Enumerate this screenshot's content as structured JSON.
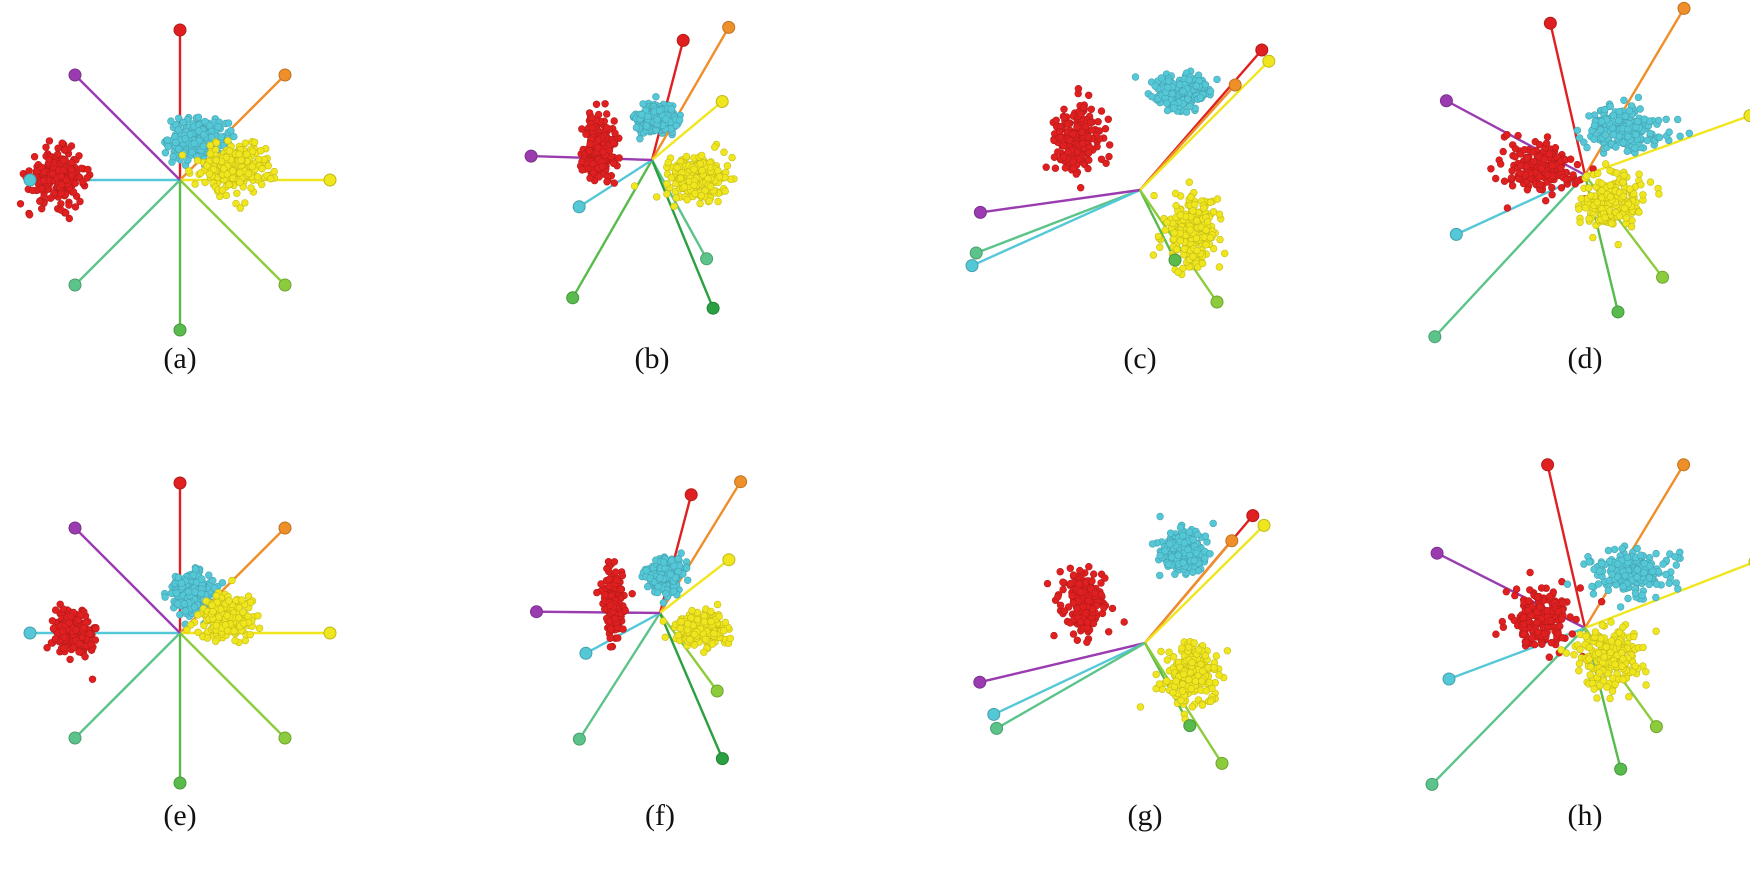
{
  "figure": {
    "colors": {
      "red": "#e02020",
      "cyan": "#55c8d8",
      "yellow": "#f0e61e",
      "purple": "#9a3cb0",
      "orange": "#ee8f2a",
      "teal_green": "#5cc48a",
      "green": "#58bb4c",
      "lime": "#8ccc3c",
      "dark_green": "#2aa040"
    }
  },
  "chart_data": [
    {
      "type": "scatter",
      "caption": "(a)",
      "clusters": [
        {
          "color": "red",
          "center": [
            -0.82,
            0.02
          ],
          "spread": [
            0.17,
            0.16
          ],
          "count": 240
        },
        {
          "color": "cyan",
          "center": [
            0.12,
            0.27
          ],
          "spread": [
            0.17,
            0.12
          ],
          "count": 260
        },
        {
          "color": "yellow",
          "center": [
            0.37,
            0.09
          ],
          "spread": [
            0.22,
            0.15
          ],
          "count": 260
        }
      ],
      "axes": [
        {
          "color": "red",
          "end": [
            0,
            1
          ]
        },
        {
          "color": "orange",
          "end": [
            0.7,
            0.7
          ]
        },
        {
          "color": "yellow",
          "end": [
            1,
            0
          ]
        },
        {
          "color": "lime",
          "end": [
            0.7,
            -0.7
          ]
        },
        {
          "color": "green",
          "end": [
            0,
            -1
          ]
        },
        {
          "color": "teal_green",
          "end": [
            -0.7,
            -0.7
          ]
        },
        {
          "color": "cyan",
          "end": [
            -1,
            0
          ]
        },
        {
          "color": "purple",
          "end": [
            -0.7,
            0.7
          ]
        }
      ]
    },
    {
      "type": "scatter",
      "caption": "(b)",
      "clusters": [
        {
          "color": "red",
          "center": [
            -0.4,
            0.08
          ],
          "spread": [
            0.11,
            0.24
          ],
          "count": 220
        },
        {
          "color": "cyan",
          "center": [
            0.03,
            0.31
          ],
          "spread": [
            0.14,
            0.1
          ],
          "count": 250
        },
        {
          "color": "yellow",
          "center": [
            0.35,
            -0.13
          ],
          "spread": [
            0.2,
            0.14
          ],
          "count": 250
        }
      ],
      "axes": [
        {
          "color": "red",
          "end": [
            0.24,
            0.92
          ]
        },
        {
          "color": "orange",
          "end": [
            0.59,
            1.02
          ]
        },
        {
          "color": "yellow",
          "end": [
            0.54,
            0.45
          ]
        },
        {
          "color": "teal_green",
          "end": [
            0.42,
            -0.76
          ]
        },
        {
          "color": "dark_green",
          "end": [
            0.47,
            -1.14
          ]
        },
        {
          "color": "green",
          "end": [
            -0.61,
            -1.06
          ]
        },
        {
          "color": "cyan",
          "end": [
            -0.56,
            -0.36
          ]
        },
        {
          "color": "purple",
          "end": [
            -0.93,
            0.03
          ]
        }
      ]
    },
    {
      "type": "scatter",
      "caption": "(c)",
      "clusters": [
        {
          "color": "red",
          "center": [
            -0.46,
            0.36
          ],
          "spread": [
            0.15,
            0.22
          ],
          "count": 210
        },
        {
          "color": "cyan",
          "center": [
            0.29,
            0.7
          ],
          "spread": [
            0.18,
            0.11
          ],
          "count": 240
        },
        {
          "color": "yellow",
          "center": [
            0.36,
            -0.29
          ],
          "spread": [
            0.19,
            0.23
          ],
          "count": 240
        }
      ],
      "axes": [
        {
          "color": "red",
          "end": [
            0.87,
            1.0
          ]
        },
        {
          "color": "orange",
          "end": [
            0.68,
            0.75
          ]
        },
        {
          "color": "yellow",
          "end": [
            0.92,
            0.92
          ]
        },
        {
          "color": "teal_green",
          "end": [
            -1.17,
            -0.45
          ]
        },
        {
          "color": "cyan",
          "end": [
            -1.2,
            -0.54
          ]
        },
        {
          "color": "purple",
          "end": [
            -1.14,
            -0.16
          ]
        },
        {
          "color": "green",
          "end": [
            0.25,
            -0.5
          ]
        },
        {
          "color": "lime",
          "end": [
            0.55,
            -0.8
          ]
        }
      ]
    },
    {
      "type": "scatter",
      "caption": "(d)",
      "clusters": [
        {
          "color": "red",
          "center": [
            -0.27,
            0.04
          ],
          "spread": [
            0.2,
            0.14
          ],
          "count": 200
        },
        {
          "color": "cyan",
          "center": [
            0.24,
            0.28
          ],
          "spread": [
            0.2,
            0.12
          ],
          "count": 220
        },
        {
          "color": "yellow",
          "center": [
            0.16,
            -0.16
          ],
          "spread": [
            0.17,
            0.15
          ],
          "count": 220
        }
      ],
      "axes": [
        {
          "color": "red",
          "end": [
            -0.21,
            0.92
          ]
        },
        {
          "color": "orange",
          "end": [
            0.6,
            1.01
          ]
        },
        {
          "color": "yellow",
          "end": [
            1.0,
            0.36
          ]
        },
        {
          "color": "purple",
          "end": [
            -0.84,
            0.45
          ]
        },
        {
          "color": "cyan",
          "end": [
            -0.78,
            -0.36
          ]
        },
        {
          "color": "teal_green",
          "end": [
            -0.91,
            -0.98
          ]
        },
        {
          "color": "green",
          "end": [
            0.2,
            -0.83
          ]
        },
        {
          "color": "lime",
          "end": [
            0.47,
            -0.62
          ]
        }
      ]
    },
    {
      "type": "scatter",
      "caption": "(e)",
      "clusters": [
        {
          "color": "red",
          "center": [
            -0.71,
            0.01
          ],
          "spread": [
            0.12,
            0.13
          ],
          "count": 240
        },
        {
          "color": "cyan",
          "center": [
            0.08,
            0.26
          ],
          "spread": [
            0.14,
            0.13
          ],
          "count": 250
        },
        {
          "color": "yellow",
          "center": [
            0.3,
            0.11
          ],
          "spread": [
            0.17,
            0.13
          ],
          "count": 250
        }
      ],
      "axes": [
        {
          "color": "red",
          "end": [
            0,
            1
          ]
        },
        {
          "color": "orange",
          "end": [
            0.7,
            0.7
          ]
        },
        {
          "color": "yellow",
          "end": [
            1,
            0
          ]
        },
        {
          "color": "lime",
          "end": [
            0.7,
            -0.7
          ]
        },
        {
          "color": "green",
          "end": [
            0,
            -1
          ]
        },
        {
          "color": "teal_green",
          "end": [
            -0.7,
            -0.7
          ]
        },
        {
          "color": "cyan",
          "end": [
            -1,
            0
          ]
        },
        {
          "color": "purple",
          "end": [
            -0.7,
            0.7
          ]
        }
      ]
    },
    {
      "type": "scatter",
      "caption": "(f)",
      "clusters": [
        {
          "color": "red",
          "center": [
            -0.36,
            0.08
          ],
          "spread": [
            0.07,
            0.22
          ],
          "count": 210
        },
        {
          "color": "cyan",
          "center": [
            0.04,
            0.29
          ],
          "spread": [
            0.13,
            0.11
          ],
          "count": 240
        },
        {
          "color": "yellow",
          "center": [
            0.32,
            -0.12
          ],
          "spread": [
            0.17,
            0.11
          ],
          "count": 240
        }
      ],
      "axes": [
        {
          "color": "red",
          "end": [
            0.24,
            0.91
          ]
        },
        {
          "color": "orange",
          "end": [
            0.62,
            1.01
          ]
        },
        {
          "color": "yellow",
          "end": [
            0.53,
            0.41
          ]
        },
        {
          "color": "lime",
          "end": [
            0.44,
            -0.6
          ]
        },
        {
          "color": "dark_green",
          "end": [
            0.48,
            -1.12
          ]
        },
        {
          "color": "teal_green",
          "end": [
            -0.62,
            -0.97
          ]
        },
        {
          "color": "cyan",
          "end": [
            -0.57,
            -0.31
          ]
        },
        {
          "color": "purple",
          "end": [
            -0.95,
            0.01
          ]
        }
      ]
    },
    {
      "type": "scatter",
      "caption": "(g)",
      "clusters": [
        {
          "color": "red",
          "center": [
            -0.44,
            0.3
          ],
          "spread": [
            0.14,
            0.2
          ],
          "count": 200
        },
        {
          "color": "cyan",
          "center": [
            0.27,
            0.66
          ],
          "spread": [
            0.15,
            0.13
          ],
          "count": 230
        },
        {
          "color": "yellow",
          "center": [
            0.32,
            -0.24
          ],
          "spread": [
            0.17,
            0.2
          ],
          "count": 230
        }
      ],
      "axes": [
        {
          "color": "red",
          "end": [
            0.77,
            0.91
          ]
        },
        {
          "color": "orange",
          "end": [
            0.62,
            0.73
          ]
        },
        {
          "color": "yellow",
          "end": [
            0.85,
            0.84
          ]
        },
        {
          "color": "purple",
          "end": [
            -1.18,
            -0.28
          ]
        },
        {
          "color": "cyan",
          "end": [
            -1.08,
            -0.51
          ]
        },
        {
          "color": "teal_green",
          "end": [
            -1.06,
            -0.61
          ]
        },
        {
          "color": "green",
          "end": [
            0.32,
            -0.59
          ]
        },
        {
          "color": "lime",
          "end": [
            0.55,
            -0.86
          ]
        }
      ]
    },
    {
      "type": "scatter",
      "caption": "(h)",
      "clusters": [
        {
          "color": "red",
          "center": [
            -0.27,
            0.05
          ],
          "spread": [
            0.18,
            0.16
          ],
          "count": 200
        },
        {
          "color": "cyan",
          "center": [
            0.27,
            0.32
          ],
          "spread": [
            0.2,
            0.12
          ],
          "count": 220
        },
        {
          "color": "yellow",
          "center": [
            0.14,
            -0.17
          ],
          "spread": [
            0.17,
            0.15
          ],
          "count": 220
        }
      ],
      "axes": [
        {
          "color": "red",
          "end": [
            -0.22,
            0.96
          ]
        },
        {
          "color": "orange",
          "end": [
            0.58,
            0.96
          ]
        },
        {
          "color": "yellow",
          "end": [
            1.0,
            0.39
          ]
        },
        {
          "color": "purple",
          "end": [
            -0.87,
            0.44
          ]
        },
        {
          "color": "cyan",
          "end": [
            -0.8,
            -0.3
          ]
        },
        {
          "color": "teal_green",
          "end": [
            -0.9,
            -0.92
          ]
        },
        {
          "color": "green",
          "end": [
            0.21,
            -0.83
          ]
        },
        {
          "color": "lime",
          "end": [
            0.42,
            -0.58
          ]
        }
      ]
    }
  ]
}
